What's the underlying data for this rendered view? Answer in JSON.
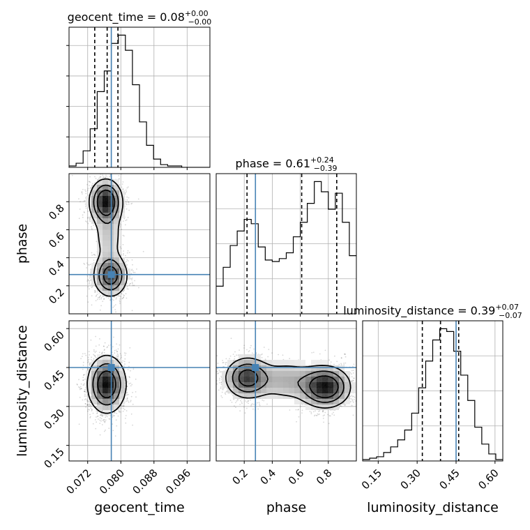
{
  "chart_data": {
    "type": "corner",
    "truth_color": "#4682b4",
    "params": [
      {
        "key": "geocent_time",
        "label": "geocent_time",
        "range": [
          0.0675,
          0.1015
        ],
        "ticks": [
          0.072,
          0.08,
          0.088,
          0.096
        ],
        "tick_labels": [
          "0.072",
          "0.080",
          "0.088",
          "0.096"
        ],
        "title": {
          "base": "geocent_time = 0.08",
          "sup": "+0.00",
          "sub": "−0.00"
        },
        "quantiles": [
          0.0737,
          0.0767,
          0.0793
        ],
        "truth": 0.0777,
        "hist": {
          "edges_start": 0.0675,
          "bin_width": 0.0017,
          "counts": [
            1,
            3,
            12,
            28,
            55,
            70,
            90,
            96,
            85,
            60,
            33,
            16,
            6,
            2,
            1,
            1,
            0,
            0,
            0,
            0
          ]
        }
      },
      {
        "key": "phase",
        "label": "phase",
        "range": [
          0.0,
          1.0
        ],
        "ticks": [
          0.2,
          0.4,
          0.6,
          0.8
        ],
        "tick_labels": [
          "0.2",
          "0.4",
          "0.6",
          "0.8"
        ],
        "title": {
          "base": "phase = 0.61",
          "sup": "+0.24",
          "sub": "−0.39"
        },
        "quantiles": [
          0.22,
          0.61,
          0.86
        ],
        "truth": 0.28,
        "hist": {
          "edges_start": 0.0,
          "bin_width": 0.05,
          "counts": [
            19,
            32,
            47,
            57,
            65,
            62,
            46,
            37,
            36,
            38,
            42,
            53,
            63,
            76,
            91,
            84,
            72,
            83,
            63,
            40
          ]
        }
      },
      {
        "key": "luminosity_distance",
        "label": "luminosity_distance",
        "range": [
          0.09,
          0.63
        ],
        "ticks": [
          0.15,
          0.3,
          0.45,
          0.6
        ],
        "tick_labels": [
          "0.15",
          "0.30",
          "0.45",
          "0.60"
        ],
        "title": {
          "base": "luminosity_distance = 0.39",
          "sup": "+0.07",
          "sub": "−0.07"
        },
        "quantiles": [
          0.32,
          0.39,
          0.46
        ],
        "truth": 0.45,
        "hist": {
          "edges_start": 0.09,
          "bin_width": 0.027,
          "counts": [
            1,
            2,
            3,
            6,
            10,
            15,
            22,
            34,
            52,
            71,
            86,
            94,
            92,
            78,
            61,
            43,
            24,
            12,
            5,
            1
          ]
        }
      }
    ],
    "pairs": [
      {
        "row": 1,
        "col": 0,
        "x": "geocent_time",
        "y": "phase"
      },
      {
        "row": 2,
        "col": 0,
        "x": "geocent_time",
        "y": "luminosity_distance"
      },
      {
        "row": 2,
        "col": 1,
        "x": "phase",
        "y": "luminosity_distance"
      }
    ]
  }
}
